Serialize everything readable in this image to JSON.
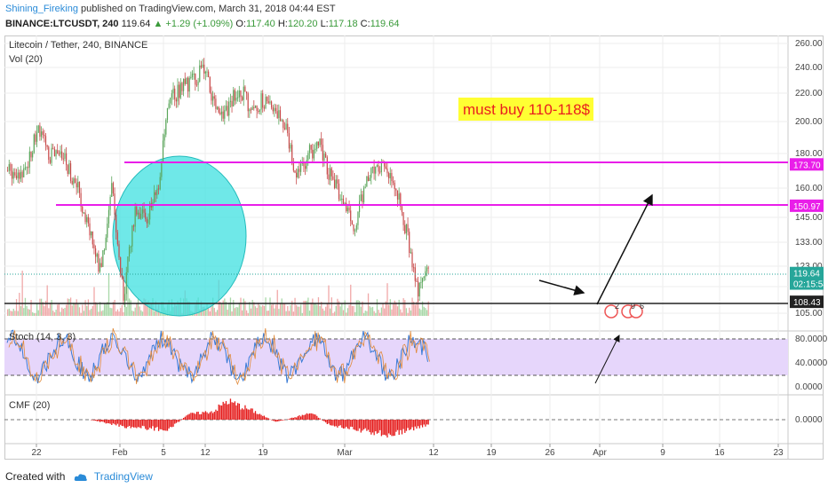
{
  "header": {
    "author": "Shining_Fireking",
    "published_text": "published on TradingView.com, March 31, 2018 04:44 EST",
    "symbol": "BINANCE:LTCUSDT, 240",
    "last": "119.64",
    "change": "▲ +1.29 (+1.09%)",
    "o_label": "O:",
    "o": "117.40",
    "h_label": "H:",
    "h": "120.20",
    "l_label": "L:",
    "l": "117.18",
    "c_label": "C:",
    "c": "119.64"
  },
  "chart_data": [
    {
      "type": "candlestick",
      "title": "Litecoin / Tether, 240, BINANCE",
      "subtitle": "Vol (20)",
      "annotation": "must buy 110-118$",
      "yticks": [
        105.0,
        113.0,
        123.0,
        133.0,
        145.0,
        160.0,
        180.0,
        200.0,
        220.0,
        240.0,
        260.0
      ],
      "ytick_labels": [
        "105.00",
        "113.00",
        "123.00",
        "133.00",
        "145.00",
        "160.00",
        "180.00",
        "200.00",
        "220.00",
        "240.00",
        "260.00"
      ],
      "price_tags": [
        {
          "label": "173.70",
          "value": 173.7,
          "color": "#e91ee9"
        },
        {
          "label": "150.97",
          "value": 150.97,
          "color": "#e91ee9"
        },
        {
          "label": "119.64",
          "value": 119.64,
          "color": "#26a69a"
        },
        {
          "label": "02:15:54",
          "value": 114.5,
          "color": "#26a69a"
        },
        {
          "label": "108.43",
          "value": 108.43,
          "color": "#222222"
        }
      ],
      "hlines": [
        173.7,
        150.97,
        108.43
      ],
      "close_path": [
        [
          "2018-01-20",
          170
        ],
        [
          "2018-01-22",
          195
        ],
        [
          "2018-01-24",
          180
        ],
        [
          "2018-01-27",
          175
        ],
        [
          "2018-01-29",
          160
        ],
        [
          "2018-01-31",
          140
        ],
        [
          "2018-02-02",
          120
        ],
        [
          "2018-02-04",
          160
        ],
        [
          "2018-02-06",
          108
        ],
        [
          "2018-02-08",
          150
        ],
        [
          "2018-02-10",
          145
        ],
        [
          "2018-02-12",
          160
        ],
        [
          "2018-02-14",
          215
        ],
        [
          "2018-02-16",
          225
        ],
        [
          "2018-02-18",
          230
        ],
        [
          "2018-02-20",
          240
        ],
        [
          "2018-02-22",
          205
        ],
        [
          "2018-02-24",
          210
        ],
        [
          "2018-02-26",
          225
        ],
        [
          "2018-02-28",
          210
        ],
        [
          "2018-03-02",
          215
        ],
        [
          "2018-03-04",
          210
        ],
        [
          "2018-03-06",
          200
        ],
        [
          "2018-03-08",
          165
        ],
        [
          "2018-03-10",
          180
        ],
        [
          "2018-03-12",
          185
        ],
        [
          "2018-03-14",
          165
        ],
        [
          "2018-03-16",
          155
        ],
        [
          "2018-03-18",
          140
        ],
        [
          "2018-03-20",
          165
        ],
        [
          "2018-03-22",
          175
        ],
        [
          "2018-03-24",
          170
        ],
        [
          "2018-03-26",
          150
        ],
        [
          "2018-03-28",
          125
        ],
        [
          "2018-03-29",
          110
        ],
        [
          "2018-03-30",
          118
        ],
        [
          "2018-03-31",
          119.64
        ]
      ]
    },
    {
      "type": "line",
      "title": "Stoch (14, 3, 3)",
      "yticks": [
        0,
        40,
        80
      ],
      "ytick_labels": [
        "0.0000",
        "40.0000",
        "80.0000"
      ],
      "band": [
        20,
        80
      ]
    },
    {
      "type": "bar",
      "title": "CMF (20)",
      "yticks": [
        0
      ],
      "ytick_labels": [
        "0.0000"
      ]
    }
  ],
  "xaxis": {
    "ticks": [
      "22",
      "Feb",
      "5",
      "12",
      "19",
      "Mar",
      "12",
      "19",
      "26",
      "Apr",
      "9",
      "16",
      "23"
    ]
  },
  "footer": {
    "created": "Created with",
    "brand": "TradingView"
  }
}
